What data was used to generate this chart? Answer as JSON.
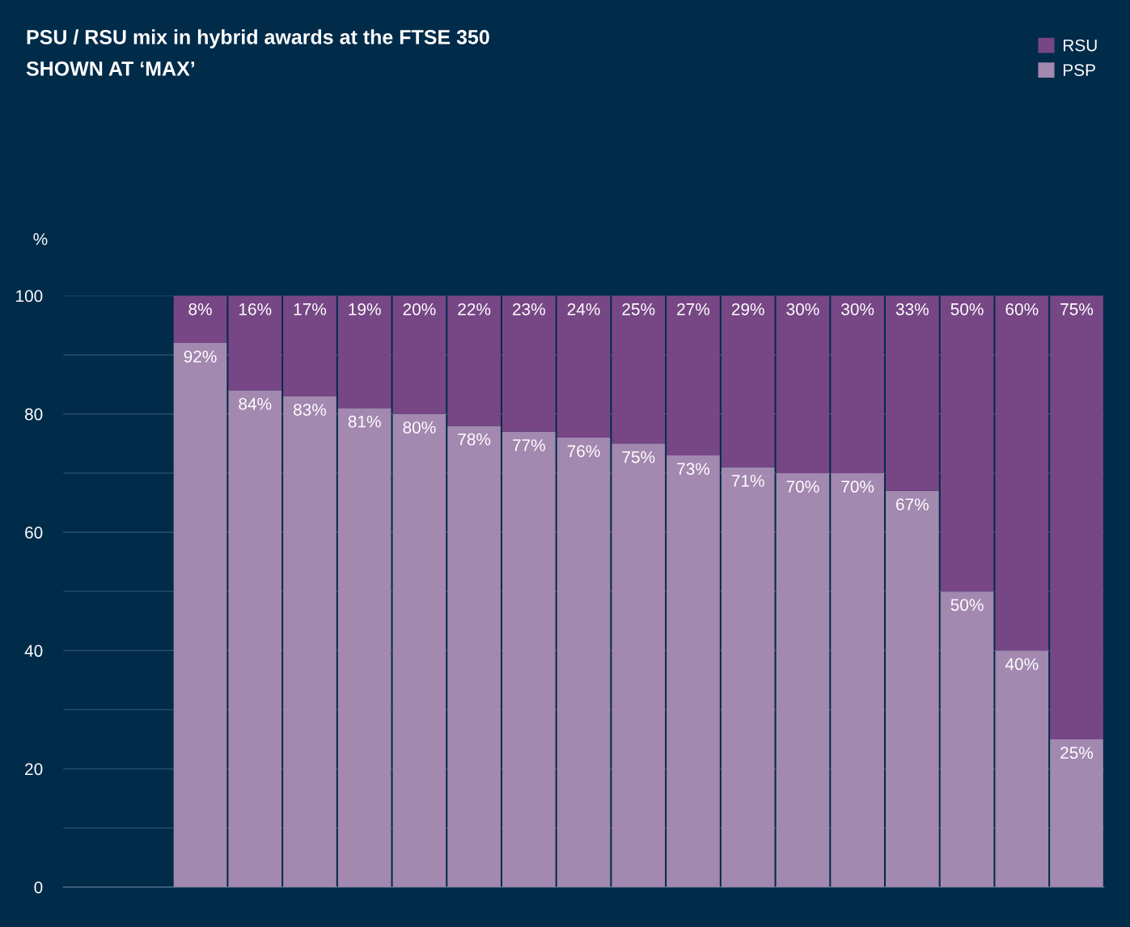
{
  "chart_data": {
    "type": "bar",
    "stacked": true,
    "title": "PSU / RSU mix in hybrid awards at the FTSE 350",
    "subtitle": "SHOWN AT ‘MAX’",
    "ylabel": "%",
    "categories": [
      null,
      null,
      null,
      null,
      null,
      null,
      null,
      null,
      null,
      null,
      null,
      null,
      null,
      null,
      null,
      null,
      null,
      null,
      null
    ],
    "series": [
      {
        "name": "PSP",
        "color": "#a388b0",
        "values": [
          null,
          null,
          92,
          84,
          83,
          81,
          80,
          78,
          77,
          76,
          75,
          73,
          71,
          70,
          70,
          67,
          50,
          40,
          25
        ],
        "value_labels": [
          null,
          null,
          "92%",
          "84%",
          "83%",
          "81%",
          "80%",
          "78%",
          "77%",
          "76%",
          "75%",
          "73%",
          "71%",
          "70%",
          "70%",
          "67%",
          "50%",
          "40%",
          "25%"
        ]
      },
      {
        "name": "RSU",
        "color": "#774785",
        "values": [
          null,
          null,
          8,
          16,
          17,
          19,
          20,
          22,
          23,
          24,
          25,
          27,
          29,
          30,
          30,
          33,
          50,
          60,
          75
        ],
        "value_labels": [
          null,
          null,
          "8%",
          "16%",
          "17%",
          "19%",
          "20%",
          "22%",
          "23%",
          "24%",
          "25%",
          "27%",
          "29%",
          "30%",
          "30%",
          "33%",
          "50%",
          "60%",
          "75%"
        ]
      }
    ],
    "ylim": [
      0,
      100
    ],
    "yticks": [
      0,
      {
        "value": 10,
        "label": null
      },
      20,
      {
        "value": 30,
        "label": null
      },
      40,
      {
        "value": 50,
        "label": null
      },
      60,
      {
        "value": 70,
        "label": null
      },
      80,
      {
        "value": 90,
        "label": null
      },
      100
    ],
    "grid": "y",
    "legend": "top right",
    "tick_labels": "y"
  }
}
